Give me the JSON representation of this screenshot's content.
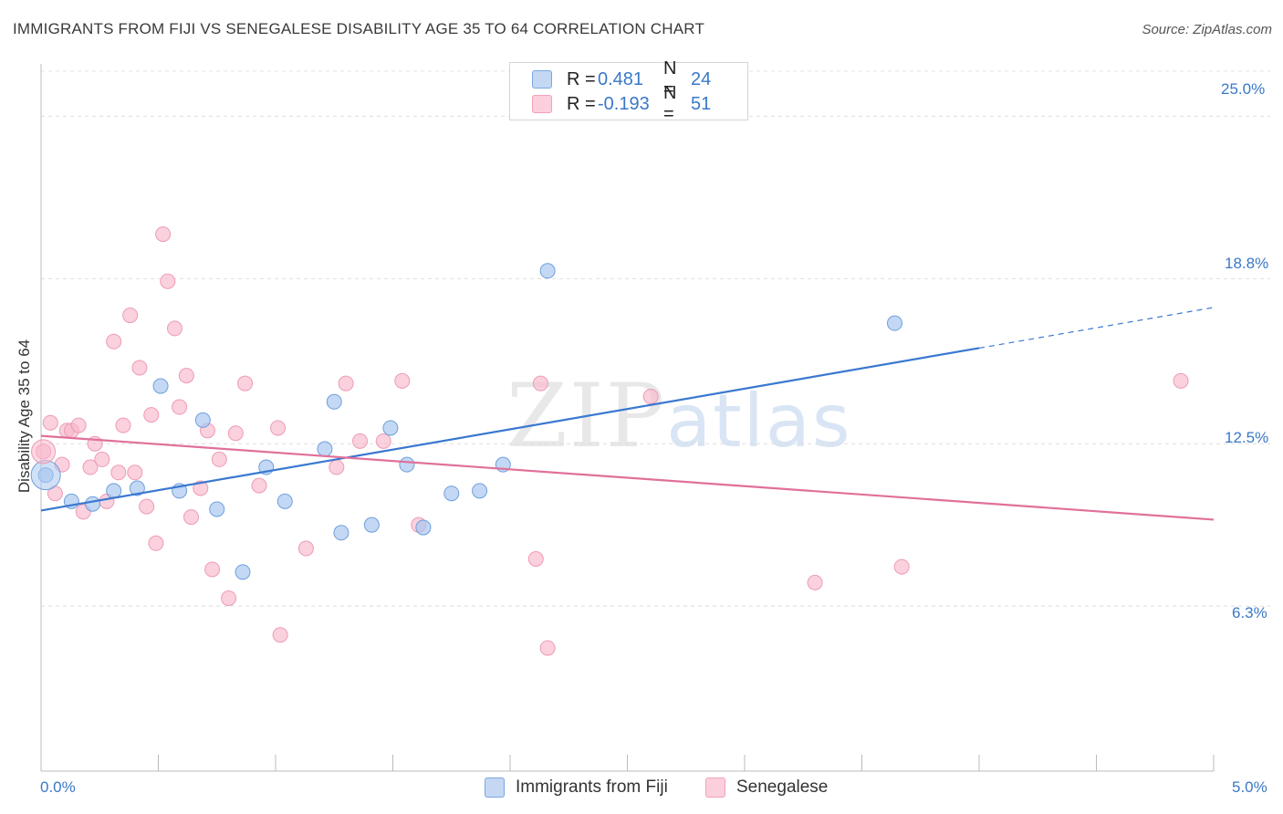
{
  "header": {
    "title": "IMMIGRANTS FROM FIJI VS SENEGALESE DISABILITY AGE 35 TO 64 CORRELATION CHART",
    "source": "Source: ZipAtlas.com"
  },
  "watermark": {
    "zip": "ZIP",
    "atlas": "atlas"
  },
  "legend": {
    "rows": [
      {
        "r_label": "R =",
        "r_value": "0.481",
        "n_label": "N =",
        "n_value": "24",
        "color": "#aac8f0"
      },
      {
        "r_label": "R =",
        "r_value": "-0.193",
        "n_label": "N =",
        "n_value": "51",
        "color": "#f7b8cb"
      }
    ]
  },
  "bottom_legend": {
    "fiji": "Immigrants from Fiji",
    "senegalese": "Senegalese"
  },
  "axes": {
    "ylabel": "Disability Age 35 to 64",
    "x_min_label": "0.0%",
    "x_max_label": "5.0%",
    "y_ticks": [
      "25.0%",
      "18.8%",
      "12.5%",
      "6.3%"
    ]
  },
  "chart_data": {
    "type": "scatter",
    "title": "IMMIGRANTS FROM FIJI VS SENEGALESE DISABILITY AGE 35 TO 64 CORRELATION CHART",
    "xlabel": "",
    "ylabel": "Disability Age 35 to 64",
    "xlim": [
      0,
      5.0
    ],
    "ylim": [
      0,
      27.0
    ],
    "y_ticks": [
      25.0,
      18.8,
      12.5,
      6.3
    ],
    "grid": true,
    "colors": {
      "fiji": "#3a78d0",
      "senegalese": "#e0709a",
      "fiji_fill": "#aac8f0",
      "senegalese_fill": "#f7b8cb"
    },
    "series": [
      {
        "name": "Immigrants from Fiji",
        "r": 0.481,
        "n": 24,
        "trend": {
          "x0": 0.0,
          "y0": 9.95,
          "x1": 4.0,
          "y1": 16.15,
          "dash_to_x": 5.0,
          "dash_to_y": 17.7
        },
        "points": [
          [
            0.02,
            11.3
          ],
          [
            0.13,
            10.3
          ],
          [
            0.22,
            10.2
          ],
          [
            0.31,
            10.7
          ],
          [
            0.41,
            10.8
          ],
          [
            0.51,
            14.7
          ],
          [
            0.59,
            10.7
          ],
          [
            0.69,
            13.4
          ],
          [
            0.75,
            10.0
          ],
          [
            0.86,
            7.6
          ],
          [
            0.96,
            11.6
          ],
          [
            1.04,
            10.3
          ],
          [
            1.21,
            12.3
          ],
          [
            1.25,
            14.1
          ],
          [
            1.28,
            9.1
          ],
          [
            1.41,
            9.4
          ],
          [
            1.49,
            13.1
          ],
          [
            1.56,
            11.7
          ],
          [
            1.63,
            9.3
          ],
          [
            1.75,
            10.6
          ],
          [
            1.87,
            10.7
          ],
          [
            1.97,
            11.7
          ],
          [
            2.16,
            19.1
          ],
          [
            3.64,
            17.1
          ]
        ]
      },
      {
        "name": "Senegalese",
        "r": -0.193,
        "n": 51,
        "trend": {
          "x0": 0.0,
          "y0": 12.8,
          "x1": 5.0,
          "y1": 9.6
        },
        "points": [
          [
            0.01,
            12.2
          ],
          [
            0.04,
            13.3
          ],
          [
            0.06,
            10.6
          ],
          [
            0.09,
            11.7
          ],
          [
            0.11,
            13.0
          ],
          [
            0.13,
            13.0
          ],
          [
            0.16,
            13.2
          ],
          [
            0.18,
            9.9
          ],
          [
            0.21,
            11.6
          ],
          [
            0.23,
            12.5
          ],
          [
            0.26,
            11.9
          ],
          [
            0.28,
            10.3
          ],
          [
            0.31,
            16.4
          ],
          [
            0.33,
            11.4
          ],
          [
            0.35,
            13.2
          ],
          [
            0.38,
            17.4
          ],
          [
            0.4,
            11.4
          ],
          [
            0.42,
            15.4
          ],
          [
            0.45,
            10.1
          ],
          [
            0.47,
            13.6
          ],
          [
            0.49,
            8.7
          ],
          [
            0.52,
            20.5
          ],
          [
            0.54,
            18.7
          ],
          [
            0.57,
            16.9
          ],
          [
            0.59,
            13.9
          ],
          [
            0.62,
            15.1
          ],
          [
            0.64,
            9.7
          ],
          [
            0.68,
            10.8
          ],
          [
            0.71,
            13.0
          ],
          [
            0.73,
            7.7
          ],
          [
            0.76,
            11.9
          ],
          [
            0.8,
            6.6
          ],
          [
            0.83,
            12.9
          ],
          [
            0.87,
            14.8
          ],
          [
            0.93,
            10.9
          ],
          [
            1.01,
            13.1
          ],
          [
            1.02,
            5.2
          ],
          [
            1.13,
            8.5
          ],
          [
            1.26,
            11.6
          ],
          [
            1.3,
            14.8
          ],
          [
            1.36,
            12.6
          ],
          [
            1.46,
            12.6
          ],
          [
            1.54,
            14.9
          ],
          [
            1.61,
            9.4
          ],
          [
            2.11,
            8.1
          ],
          [
            2.13,
            14.8
          ],
          [
            2.16,
            4.7
          ],
          [
            2.6,
            14.3
          ],
          [
            3.3,
            7.2
          ],
          [
            3.67,
            7.8
          ],
          [
            4.86,
            14.9
          ]
        ]
      }
    ]
  }
}
